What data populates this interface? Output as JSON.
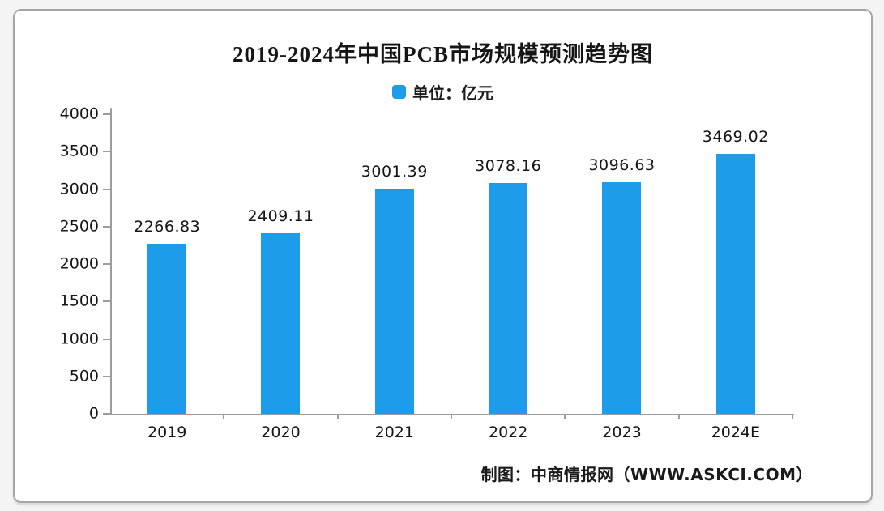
{
  "page": {
    "background": "#ffffff",
    "border_color": "#a6a6a6"
  },
  "chart_data": {
    "type": "bar",
    "title": "2019-2024年中国PCB市场规模预测趋势图",
    "legend": "单位：亿元",
    "legend_position": "top-center",
    "categories": [
      "2019",
      "2020",
      "2021",
      "2022",
      "2023",
      "2024E"
    ],
    "values": [
      2266.83,
      2409.11,
      3001.39,
      3078.16,
      3096.63,
      3469.02
    ],
    "value_labels": [
      "2266.83",
      "2409.11",
      "3001.39",
      "3078.16",
      "3096.63",
      "3469.02"
    ],
    "xlabel": "",
    "ylabel": "",
    "ylim": [
      0,
      4000
    ],
    "y_ticks": [
      0,
      500,
      1000,
      1500,
      2000,
      2500,
      3000,
      3500,
      4000
    ],
    "grid": false,
    "bar_color": "#1d9ce9",
    "axis_color": "#9c9c9c",
    "text_color": "#161616"
  },
  "footer": {
    "credit": "制图：中商情报网（WWW.ASKCI.COM）"
  }
}
